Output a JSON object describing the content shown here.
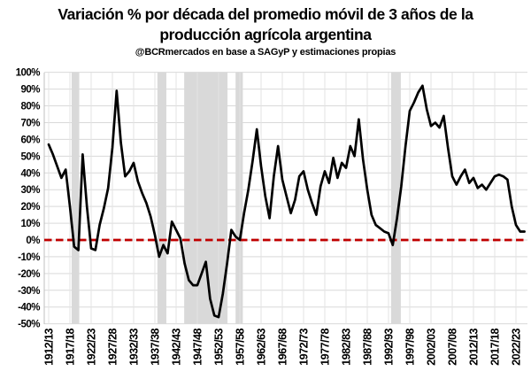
{
  "header": {
    "title_line1": "Variación % por década del promedio móvil de 3 años de la",
    "title_line2": "producción agrícola argentina",
    "subtitle": "@BCRmercados en base a SAGyP y estimaciones propias"
  },
  "colors": {
    "line": "#000000",
    "zero_line": "#c00000",
    "band": "#d9d9d9",
    "hgrid": "#d9d9d9",
    "vgrid": "#e3e3e3",
    "axis": "#bfbfbf",
    "background": "#ffffff"
  },
  "chart_data": {
    "type": "line",
    "title": "Variación % por década del promedio móvil de 3 años de la producción agrícola argentina",
    "subtitle": "@BCRmercados en base a SAGyP y estimaciones propias",
    "xlabel": "",
    "ylabel": "",
    "ylim": [
      -50,
      100
    ],
    "y_tick_step": 10,
    "y_tick_labels": [
      "100%",
      "90%",
      "80%",
      "70%",
      "60%",
      "50%",
      "40%",
      "30%",
      "20%",
      "10%",
      "0%",
      "-10%",
      "-20%",
      "-30%",
      "-40%",
      "-50%"
    ],
    "x_tick_labels": [
      "1912/13",
      "1917/18",
      "1922/23",
      "1927/28",
      "1932/33",
      "1937/38",
      "1942/43",
      "1947/48",
      "1952/53",
      "1957/58",
      "1962/63",
      "1967/68",
      "1972/73",
      "1977/78",
      "1982/83",
      "1987/88",
      "1992/93",
      "1997/98",
      "2002/03",
      "2007/08",
      "2012/13",
      "2017/18",
      "2022/23"
    ],
    "x_tick_every": 5,
    "x": [
      "1912/13",
      "1913/14",
      "1914/15",
      "1915/16",
      "1916/17",
      "1917/18",
      "1918/19",
      "1919/20",
      "1920/21",
      "1921/22",
      "1922/23",
      "1923/24",
      "1924/25",
      "1925/26",
      "1926/27",
      "1927/28",
      "1928/29",
      "1929/30",
      "1930/31",
      "1931/32",
      "1932/33",
      "1933/34",
      "1934/35",
      "1935/36",
      "1936/37",
      "1937/38",
      "1938/39",
      "1939/40",
      "1940/41",
      "1941/42",
      "1942/43",
      "1943/44",
      "1944/45",
      "1945/46",
      "1946/47",
      "1947/48",
      "1948/49",
      "1949/50",
      "1950/51",
      "1951/52",
      "1952/53",
      "1953/54",
      "1954/55",
      "1955/56",
      "1956/57",
      "1957/58",
      "1958/59",
      "1959/60",
      "1960/61",
      "1961/62",
      "1962/63",
      "1963/64",
      "1964/65",
      "1965/66",
      "1966/67",
      "1967/68",
      "1968/69",
      "1969/70",
      "1970/71",
      "1971/72",
      "1972/73",
      "1973/74",
      "1974/75",
      "1975/76",
      "1976/77",
      "1977/78",
      "1978/79",
      "1979/80",
      "1980/81",
      "1981/82",
      "1982/83",
      "1983/84",
      "1984/85",
      "1985/86",
      "1986/87",
      "1987/88",
      "1988/89",
      "1989/90",
      "1990/91",
      "1991/92",
      "1992/93",
      "1993/94",
      "1994/95",
      "1995/96",
      "1996/97",
      "1997/98",
      "1998/99",
      "1999/00",
      "2000/01",
      "2001/02",
      "2002/03",
      "2003/04",
      "2004/05",
      "2005/06",
      "2006/07",
      "2007/08",
      "2008/09",
      "2009/10",
      "2010/11",
      "2011/12",
      "2012/13",
      "2013/14",
      "2014/15",
      "2015/16",
      "2016/17",
      "2017/18",
      "2018/19",
      "2019/20",
      "2020/21",
      "2021/22",
      "2022/23",
      "2023/24",
      "2024/25"
    ],
    "series": [
      {
        "name": "Variación % por década del promedio móvil de 3 años",
        "color": "#000000",
        "values": [
          57,
          51,
          44,
          37,
          42,
          20,
          -4,
          -6,
          51,
          20,
          -5,
          -6,
          9,
          19,
          31,
          55,
          89,
          58,
          38,
          41,
          46,
          35,
          28,
          22,
          14,
          3,
          -10,
          -3,
          -8,
          11,
          6,
          1,
          -14,
          -24,
          -27,
          -27,
          -20,
          -13,
          -35,
          -45,
          -46,
          -32,
          -14,
          6,
          2,
          0,
          16,
          30,
          47,
          66,
          44,
          26,
          13,
          38,
          56,
          36,
          26,
          16,
          24,
          38,
          41,
          30,
          22,
          15,
          32,
          41,
          34,
          49,
          37,
          46,
          43,
          56,
          50,
          72,
          48,
          30,
          15,
          9,
          7,
          5,
          4,
          -3,
          13,
          32,
          56,
          77,
          82,
          88,
          92,
          78,
          68,
          70,
          67,
          74,
          55,
          38,
          33,
          38,
          42,
          34,
          37,
          31,
          33,
          30,
          34,
          38,
          39,
          38,
          36,
          20,
          9,
          5,
          5
        ]
      }
    ],
    "zero_line": {
      "value": 0,
      "color": "#c00000",
      "style": "dashed"
    },
    "shaded_band_index_ranges": [
      [
        5.4,
        7.2
      ],
      [
        25.6,
        27.7
      ],
      [
        31.9,
        42.1
      ],
      [
        44.0,
        45.7
      ],
      [
        80.6,
        82.9
      ]
    ],
    "grid": true,
    "legend": false
  }
}
